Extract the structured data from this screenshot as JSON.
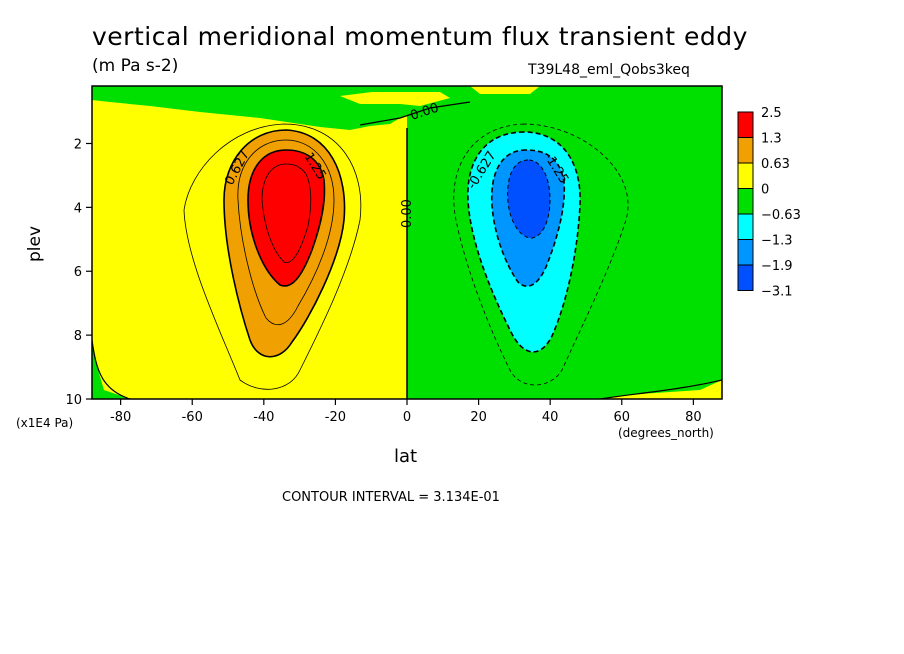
{
  "chart_data": {
    "type": "heatmap",
    "title": "vertical meridional momentum flux transient eddy",
    "units": "(m Pa s-2)",
    "run_id": "T39L48_eml_Qobs3keq",
    "xlabel": "lat",
    "ylabel": "plev",
    "x_units": "(degrees_north)",
    "y_units": "(x1E4 Pa)",
    "xlim": [
      -88,
      88
    ],
    "ylim": [
      10,
      0.2
    ],
    "x_ticks": [
      "-80",
      "-60",
      "-40",
      "-20",
      "0",
      "20",
      "40",
      "60",
      "80"
    ],
    "y_ticks": [
      "2",
      "4",
      "6",
      "8",
      "10"
    ],
    "colorbar": {
      "labels": [
        "2.5",
        "1.3",
        "0.63",
        "0",
        "−0.63",
        "−1.3",
        "−1.9",
        "−3.1"
      ],
      "colors": [
        "#ff0000",
        "#f0a000",
        "#ffff00",
        "#00e000",
        "#00ffff",
        "#0096ff",
        "#0050ff"
      ]
    },
    "contour_labels": [
      "0.627",
      "1.25",
      "0.00",
      "0.00",
      "-0.627",
      "-1.25"
    ],
    "contour_interval_text": "CONTOUR INTERVAL = 3.134E-01",
    "features": [
      {
        "name": "southern maximum",
        "lat": -35,
        "plev": 3.7,
        "value": 2.5
      },
      {
        "name": "northern minimum",
        "lat": 35,
        "plev": 3.7,
        "value": -2.5
      }
    ]
  }
}
